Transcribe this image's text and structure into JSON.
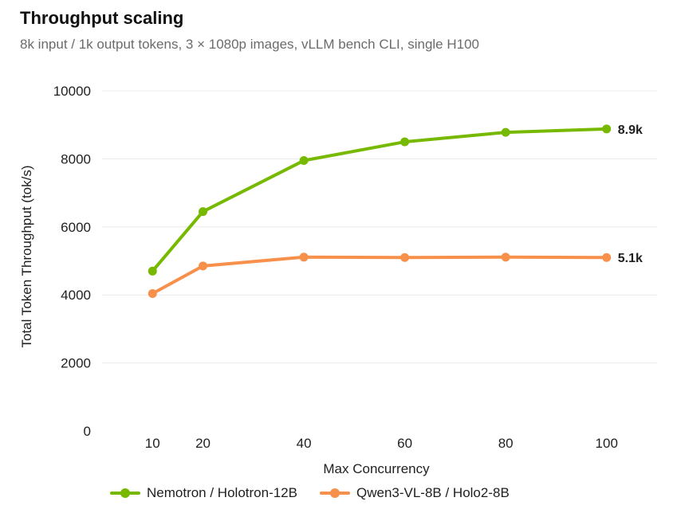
{
  "header": {
    "title": "Throughput scaling",
    "subtitle": "8k input / 1k output tokens, 3 × 1080p images, vLLM bench CLI, single H100"
  },
  "chart_data": {
    "type": "line",
    "title": "Throughput scaling",
    "subtitle": "8k input / 1k output tokens, 3 × 1080p images, vLLM bench CLI, single H100",
    "xlabel": "Max Concurrency",
    "ylabel": "Total Token Throughput (tok/s)",
    "x": [
      10,
      20,
      40,
      60,
      80,
      100
    ],
    "x_ticks": [
      "10",
      "20",
      "40",
      "60",
      "80",
      "100"
    ],
    "xlim": [
      0,
      110
    ],
    "ylim": [
      0,
      10000
    ],
    "y_ticks": [
      "0",
      "2000",
      "4000",
      "6000",
      "8000",
      "10000"
    ],
    "grid": "horizontal",
    "legend_position": "bottom",
    "series": [
      {
        "name": "Nemotron / Holotron-12B",
        "color": "#76b900",
        "values": [
          4700,
          6450,
          7950,
          8500,
          8780,
          8880
        ],
        "end_label": "8.9k"
      },
      {
        "name": "Qwen3-VL-8B / Holo2-8B",
        "color": "#f7904a",
        "values": [
          4040,
          4850,
          5110,
          5100,
          5110,
          5100
        ],
        "end_label": "5.1k"
      }
    ]
  }
}
